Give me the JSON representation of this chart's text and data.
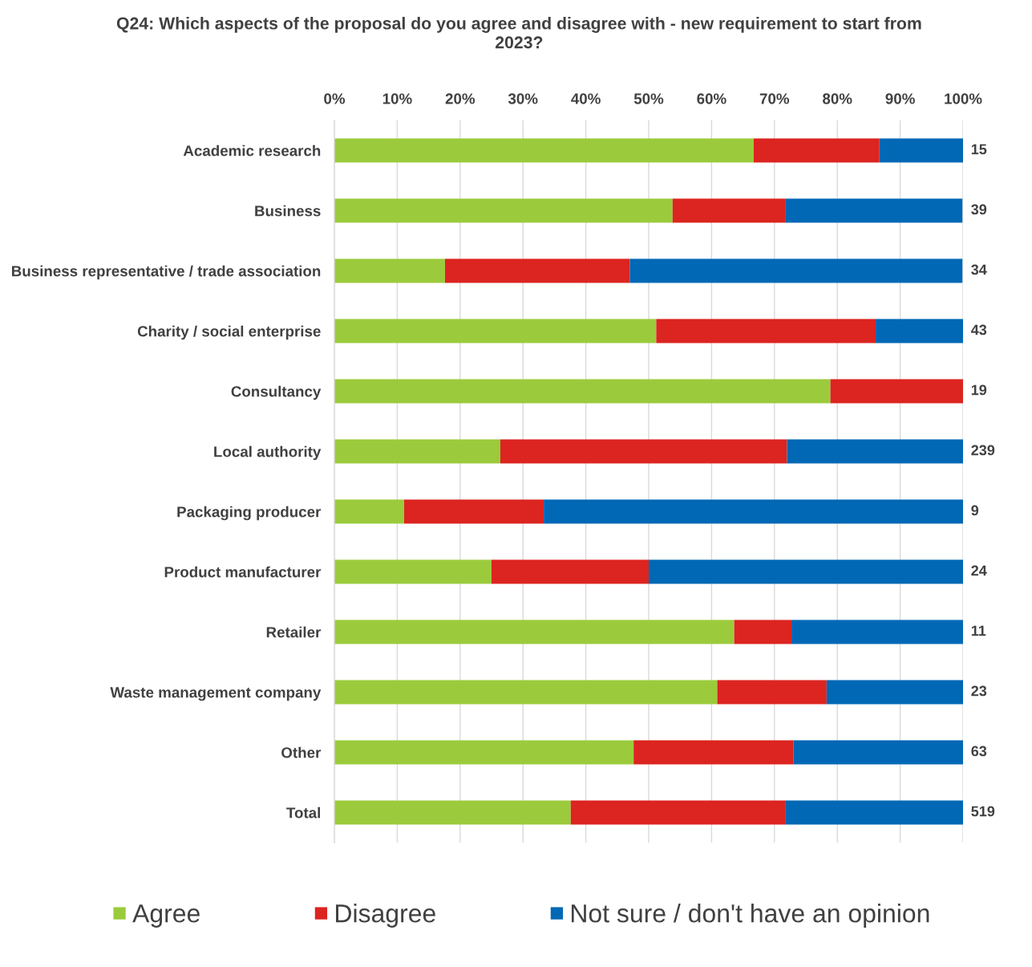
{
  "chart_data": {
    "type": "bar",
    "orientation": "horizontal",
    "stacked": true,
    "title": "Q24: Which aspects of the proposal do you agree and disagree with - new requirement to start from 2023?",
    "categories": [
      "Academic research",
      "Business",
      "Business representative / trade association",
      "Charity / social enterprise",
      "Consultancy",
      "Local authority",
      "Packaging producer",
      "Product manufacturer",
      "Retailer",
      "Waste management company",
      "Other",
      "Total"
    ],
    "series": [
      {
        "name": "Agree",
        "color": "#9bcb3c",
        "values": [
          66.7,
          53.8,
          17.6,
          51.2,
          78.9,
          26.4,
          11.1,
          25.0,
          63.6,
          60.9,
          47.6,
          37.6
        ]
      },
      {
        "name": "Disagree",
        "color": "#dc2420",
        "values": [
          20.0,
          17.9,
          29.4,
          34.9,
          21.1,
          45.6,
          22.2,
          25.0,
          9.1,
          17.4,
          25.4,
          34.1
        ]
      },
      {
        "name": "Not sure / don't have an opinion",
        "color": "#0068b5",
        "values": [
          13.3,
          28.2,
          52.9,
          13.9,
          0,
          28.0,
          66.7,
          50.0,
          27.3,
          21.7,
          27.0,
          28.3
        ]
      }
    ],
    "annotations": [
      "15",
      "39",
      "34",
      "43",
      "19",
      "239",
      "9",
      "24",
      "11",
      "23",
      "63",
      "519"
    ],
    "xlim": [
      0,
      100
    ],
    "xticks": [
      {
        "value": 0,
        "label": "0%"
      },
      {
        "value": 10,
        "label": "10%"
      },
      {
        "value": 20,
        "label": "20%"
      },
      {
        "value": 30,
        "label": "30%"
      },
      {
        "value": 40,
        "label": "40%"
      },
      {
        "value": 50,
        "label": "50%"
      },
      {
        "value": 60,
        "label": "60%"
      },
      {
        "value": 70,
        "label": "70%"
      },
      {
        "value": 80,
        "label": "80%"
      },
      {
        "value": 90,
        "label": "90%"
      },
      {
        "value": 100,
        "label": "100%"
      }
    ],
    "grid": "x",
    "legend": "bottom"
  }
}
